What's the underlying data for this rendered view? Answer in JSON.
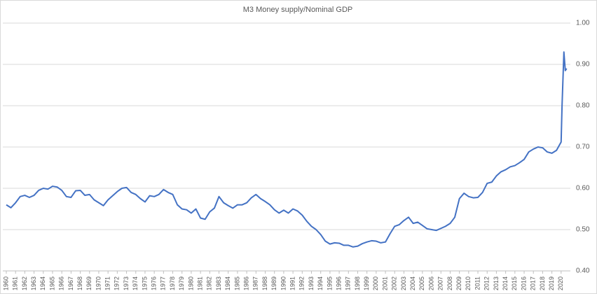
{
  "chart_data": {
    "type": "line",
    "title": "M3 Money supply/Nominal GDP",
    "series": [
      {
        "name": "M3 Money supply/Nominal GDP",
        "color": "#4472c4",
        "x": [
          1960,
          1960.5,
          1961,
          1961.5,
          1962,
          1962.5,
          1963,
          1963.5,
          1964,
          1964.5,
          1965,
          1965.5,
          1966,
          1966.5,
          1967,
          1967.5,
          1968,
          1968.5,
          1969,
          1969.5,
          1970,
          1970.5,
          1971,
          1971.5,
          1972,
          1972.5,
          1973,
          1973.5,
          1974,
          1974.5,
          1975,
          1975.5,
          1976,
          1976.5,
          1977,
          1977.5,
          1978,
          1978.5,
          1979,
          1979.5,
          1980,
          1980.5,
          1981,
          1981.5,
          1982,
          1982.5,
          1983,
          1983.5,
          1984,
          1984.5,
          1985,
          1985.5,
          1986,
          1986.5,
          1987,
          1987.5,
          1988,
          1988.5,
          1989,
          1989.5,
          1990,
          1990.5,
          1991,
          1991.5,
          1992,
          1992.5,
          1993,
          1993.5,
          1994,
          1994.5,
          1995,
          1995.5,
          1996,
          1996.5,
          1997,
          1997.5,
          1998,
          1998.5,
          1999,
          1999.5,
          2000,
          2000.5,
          2001,
          2001.5,
          2002,
          2002.5,
          2003,
          2003.5,
          2004,
          2004.5,
          2005,
          2005.5,
          2006,
          2006.5,
          2007,
          2007.5,
          2008,
          2008.5,
          2009,
          2009.5,
          2010,
          2010.5,
          2011,
          2011.5,
          2012,
          2012.5,
          2013,
          2013.5,
          2014,
          2014.5,
          2015,
          2015.5,
          2016,
          2016.5,
          2017,
          2017.5,
          2018,
          2018.5,
          2019,
          2019.5,
          2020,
          2020.1,
          2020.3,
          2020.45,
          2020.6
        ],
        "values": [
          0.56,
          0.553,
          0.565,
          0.58,
          0.583,
          0.578,
          0.583,
          0.595,
          0.6,
          0.598,
          0.605,
          0.603,
          0.595,
          0.58,
          0.578,
          0.594,
          0.595,
          0.583,
          0.585,
          0.572,
          0.565,
          0.558,
          0.572,
          0.582,
          0.592,
          0.6,
          0.602,
          0.59,
          0.585,
          0.575,
          0.567,
          0.582,
          0.58,
          0.585,
          0.597,
          0.59,
          0.585,
          0.56,
          0.55,
          0.548,
          0.54,
          0.55,
          0.528,
          0.525,
          0.543,
          0.552,
          0.58,
          0.565,
          0.558,
          0.552,
          0.56,
          0.56,
          0.565,
          0.577,
          0.585,
          0.575,
          0.568,
          0.56,
          0.548,
          0.54,
          0.547,
          0.54,
          0.55,
          0.545,
          0.535,
          0.52,
          0.508,
          0.5,
          0.488,
          0.472,
          0.465,
          0.468,
          0.467,
          0.462,
          0.462,
          0.458,
          0.46,
          0.466,
          0.47,
          0.473,
          0.472,
          0.468,
          0.47,
          0.49,
          0.508,
          0.512,
          0.522,
          0.53,
          0.515,
          0.518,
          0.51,
          0.502,
          0.5,
          0.498,
          0.503,
          0.508,
          0.515,
          0.53,
          0.575,
          0.588,
          0.58,
          0.577,
          0.578,
          0.59,
          0.612,
          0.615,
          0.63,
          0.64,
          0.645,
          0.652,
          0.655,
          0.662,
          0.67,
          0.688,
          0.695,
          0.7,
          0.698,
          0.688,
          0.685,
          0.692,
          0.712,
          0.8,
          0.93,
          0.885,
          0.89
        ]
      }
    ],
    "xlim": [
      1960,
      2021
    ],
    "xticks": [
      1960,
      1961,
      1962,
      1963,
      1964,
      1965,
      1966,
      1967,
      1968,
      1969,
      1970,
      1971,
      1972,
      1973,
      1974,
      1975,
      1976,
      1977,
      1978,
      1979,
      1980,
      1981,
      1982,
      1983,
      1984,
      1985,
      1986,
      1987,
      1988,
      1989,
      1990,
      1991,
      1992,
      1993,
      1994,
      1995,
      1996,
      1997,
      1998,
      1999,
      2000,
      2001,
      2002,
      2003,
      2004,
      2005,
      2006,
      2007,
      2008,
      2009,
      2010,
      2011,
      2012,
      2013,
      2014,
      2015,
      2016,
      2017,
      2018,
      2019,
      2020
    ],
    "ylim": [
      0.4,
      1.0
    ],
    "yticks": [
      {
        "value": 0.4,
        "label": "0.40"
      },
      {
        "value": 0.5,
        "label": "0.50"
      },
      {
        "value": 0.6,
        "label": "0.60"
      },
      {
        "value": 0.7,
        "label": "0.70"
      },
      {
        "value": 0.8,
        "label": "0.80"
      },
      {
        "value": 0.9,
        "label": "0.90"
      },
      {
        "value": 1.0,
        "label": "1.00"
      }
    ],
    "grid": true
  }
}
